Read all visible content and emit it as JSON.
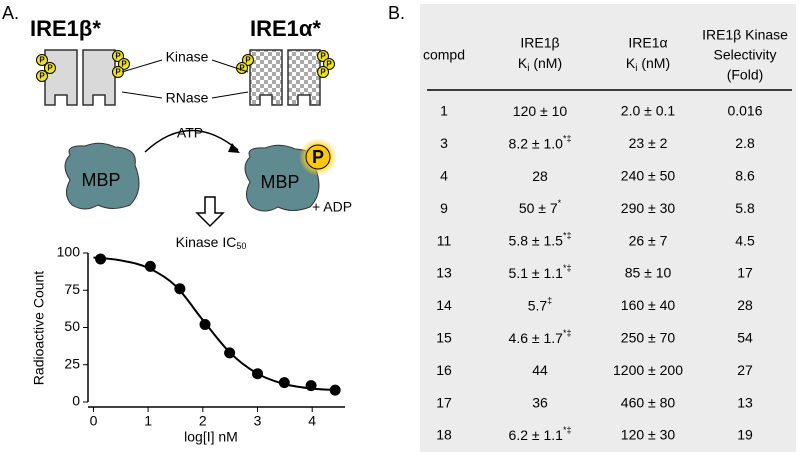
{
  "panel_a": {
    "label": "A.",
    "ire1b": "IRE1β*",
    "ire1a": "IRE1α*",
    "kinase": "Kinase",
    "rnase": "RNase",
    "phospho": "P",
    "atp": "ATP",
    "mbp_left": "MBP",
    "mbp_right": "MBP",
    "adp": "+ ADP"
  },
  "chart_data": {
    "type": "scatter",
    "title_main": "Kinase IC",
    "title_sub": "50",
    "xlabel": "log[I] nM",
    "ylabel": "Radioactive Count",
    "xlim": [
      -0.1,
      4.6
    ],
    "xticks": [
      0,
      1,
      2,
      3,
      4
    ],
    "ylim": [
      0,
      100
    ],
    "yticks": [
      0,
      25,
      50,
      75,
      100
    ],
    "series": [
      {
        "style": "points",
        "color": "#000000",
        "x": [
          0.13,
          1.04,
          1.58,
          2.04,
          2.49,
          3.0,
          3.49,
          3.98,
          4.42
        ],
        "values": [
          96,
          91,
          76,
          52,
          33,
          19,
          13,
          11,
          8
        ]
      },
      {
        "style": "line",
        "color": "#000000",
        "x": [
          0,
          0.5,
          1,
          1.5,
          2,
          2.5,
          3,
          3.5,
          4,
          4.5
        ],
        "values": [
          97,
          95,
          90,
          78,
          55,
          33,
          19,
          12,
          9,
          8
        ]
      }
    ]
  },
  "table": {
    "label": "B.",
    "header": [
      [
        "compd"
      ],
      [
        "IRE1β",
        "K",
        "i",
        " (nM)"
      ],
      [
        "IRE1α",
        "K",
        "i",
        " (nM)"
      ],
      [
        "IRE1β Kinase",
        "Selectivity",
        "(Fold)"
      ]
    ],
    "rows": [
      [
        "1",
        {
          "text": "120 ± 10"
        },
        "2.0 ± 0.1",
        "0.016"
      ],
      [
        "3",
        {
          "text": "8.2 ± 1.0",
          "sup": "*‡"
        },
        "23 ± 2",
        "2.8"
      ],
      [
        "4",
        {
          "text": "28"
        },
        "240 ± 50",
        "8.6"
      ],
      [
        "9",
        {
          "text": "50 ± 7",
          "sup": "*"
        },
        "290 ± 30",
        "5.8"
      ],
      [
        "11",
        {
          "text": "5.8 ± 1.5",
          "sup": "*‡"
        },
        "26 ± 7",
        "4.5"
      ],
      [
        "13",
        {
          "text": "5.1 ± 1.1",
          "sup": "*‡"
        },
        "85 ± 10",
        "17"
      ],
      [
        "14",
        {
          "text": "5.7",
          "sup": "‡"
        },
        "160 ± 40",
        "28"
      ],
      [
        "15",
        {
          "text": "4.6 ± 1.7",
          "sup": "*‡"
        },
        "250 ± 70",
        "54"
      ],
      [
        "16",
        {
          "text": "44"
        },
        "1200 ± 200",
        "27"
      ],
      [
        "17",
        {
          "text": "36"
        },
        "460 ± 80",
        "13"
      ],
      [
        "18",
        {
          "text": "6.2 ± 1.1",
          "sup": "*‡"
        },
        "120 ± 30",
        "19"
      ]
    ]
  }
}
